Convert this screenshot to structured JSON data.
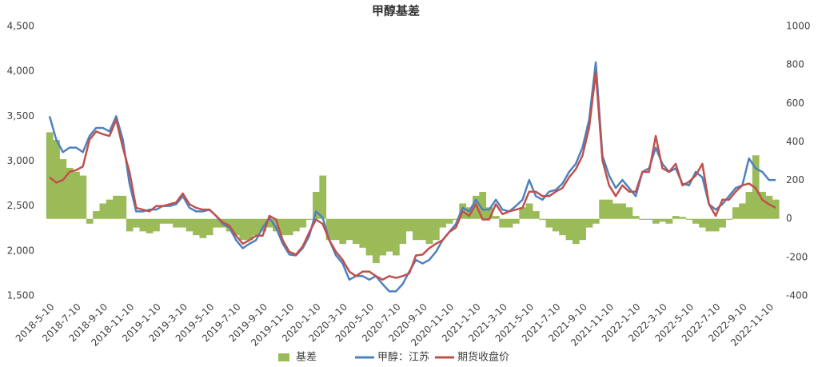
{
  "chart_data": {
    "type": "line",
    "title": "甲醇基差",
    "categories": [
      "2018-5-10",
      null,
      null,
      null,
      "2018-7-10",
      null,
      null,
      null,
      "2018-9-10",
      null,
      null,
      null,
      "2018-11-10",
      null,
      null,
      null,
      "2019-1-10",
      null,
      null,
      null,
      "2019-3-10",
      null,
      null,
      null,
      "2019-5-10",
      null,
      null,
      null,
      "2019-7-10",
      null,
      null,
      null,
      "2019-9-10",
      null,
      null,
      null,
      "2019-11-10",
      null,
      null,
      null,
      "2020-1-10",
      null,
      null,
      null,
      "2020-3-10",
      null,
      null,
      null,
      "2020-5-10",
      null,
      null,
      null,
      "2020-7-10",
      null,
      null,
      null,
      "2020-9-10",
      null,
      null,
      null,
      "2020-11-10",
      null,
      null,
      null,
      "2021-1-10",
      null,
      null,
      null,
      "2021-3-10",
      null,
      null,
      null,
      "2021-5-10",
      null,
      null,
      null,
      "2021-7-10",
      null,
      null,
      null,
      "2021-9-10",
      null,
      null,
      null,
      "2021-11-10",
      null,
      null,
      null,
      "2022-1-10",
      null,
      null,
      null,
      "2022-3-10",
      null,
      null,
      null,
      "2022-5-10",
      null,
      null,
      null,
      "2022-7-10",
      null,
      null,
      null,
      "2022-9-10",
      null,
      null,
      null,
      "2022-11-10",
      null
    ],
    "series": [
      {
        "name": "基差",
        "type": "bar",
        "axis": "y2",
        "color": "#9bbb59",
        "values": [
          450,
          410,
          310,
          265,
          245,
          225,
          -25,
          40,
          80,
          100,
          120,
          120,
          -65,
          -45,
          -65,
          -75,
          -65,
          -25,
          -25,
          -45,
          -45,
          -65,
          -85,
          -100,
          -85,
          -45,
          -45,
          -65,
          -85,
          -110,
          -110,
          -85,
          -65,
          -45,
          -65,
          -85,
          -85,
          -65,
          -45,
          -5,
          140,
          225,
          -110,
          -110,
          -130,
          -110,
          -130,
          -150,
          -190,
          -230,
          -190,
          -170,
          -190,
          -130,
          -65,
          -110,
          -110,
          -130,
          -110,
          -45,
          -25,
          -5,
          80,
          60,
          120,
          140,
          60,
          15,
          -45,
          -45,
          -25,
          60,
          80,
          40,
          -5,
          -45,
          -65,
          -85,
          -110,
          -130,
          -110,
          -45,
          -25,
          100,
          100,
          80,
          80,
          60,
          15,
          -5,
          -5,
          -25,
          -15,
          -25,
          15,
          10,
          -5,
          -25,
          -45,
          -65,
          -65,
          -45,
          -5,
          60,
          80,
          140,
          330,
          140,
          120,
          100
        ]
      },
      {
        "name": "甲醇：江苏",
        "type": "line",
        "color": "#4f81bd",
        "values": [
          3500,
          3240,
          3100,
          3150,
          3150,
          3100,
          3280,
          3370,
          3370,
          3330,
          3500,
          3240,
          2750,
          2440,
          2440,
          2460,
          2460,
          2500,
          2500,
          2520,
          2610,
          2480,
          2440,
          2440,
          2460,
          2390,
          2300,
          2260,
          2120,
          2030,
          2080,
          2120,
          2260,
          2370,
          2260,
          2080,
          1960,
          1950,
          2030,
          2170,
          2440,
          2370,
          2120,
          1950,
          1860,
          1680,
          1720,
          1720,
          1680,
          1720,
          1630,
          1550,
          1550,
          1630,
          1770,
          1900,
          1860,
          1900,
          1990,
          2120,
          2210,
          2300,
          2480,
          2440,
          2570,
          2460,
          2460,
          2570,
          2460,
          2440,
          2500,
          2570,
          2790,
          2610,
          2570,
          2660,
          2680,
          2750,
          2880,
          2970,
          3150,
          3460,
          4100,
          3060,
          2840,
          2700,
          2790,
          2700,
          2610,
          2880,
          2920,
          3150,
          2970,
          2880,
          2920,
          2750,
          2730,
          2880,
          2820,
          2520,
          2460,
          2520,
          2610,
          2700,
          2730,
          3030,
          2920,
          2880,
          2790,
          2790
        ]
      },
      {
        "name": "期货收盘价",
        "type": "line",
        "color": "#c0504d",
        "values": [
          2820,
          2760,
          2790,
          2880,
          2900,
          2940,
          3240,
          3330,
          3300,
          3280,
          3460,
          3150,
          2880,
          2480,
          2460,
          2440,
          2500,
          2500,
          2520,
          2540,
          2640,
          2520,
          2480,
          2460,
          2460,
          2390,
          2320,
          2280,
          2170,
          2080,
          2120,
          2170,
          2170,
          2390,
          2350,
          2120,
          1990,
          1960,
          2050,
          2210,
          2350,
          2300,
          2120,
          1990,
          1900,
          1770,
          1720,
          1770,
          1770,
          1720,
          1680,
          1720,
          1700,
          1720,
          1750,
          1950,
          1960,
          2030,
          2080,
          2120,
          2210,
          2260,
          2440,
          2390,
          2520,
          2350,
          2350,
          2520,
          2410,
          2440,
          2460,
          2480,
          2660,
          2660,
          2610,
          2610,
          2660,
          2700,
          2820,
          2910,
          3060,
          3370,
          3990,
          3010,
          2730,
          2610,
          2730,
          2660,
          2660,
          2880,
          2880,
          3280,
          2920,
          2880,
          2970,
          2730,
          2770,
          2840,
          2970,
          2520,
          2390,
          2570,
          2570,
          2660,
          2730,
          2750,
          2700,
          2570,
          2520,
          2480
        ]
      }
    ],
    "ylim": [
      1500,
      4500
    ],
    "yticks": [
      {
        "value": 1500,
        "label": "1,500"
      },
      {
        "value": 2000,
        "label": "2,000"
      },
      {
        "value": 2500,
        "label": "2,500"
      },
      {
        "value": 3000,
        "label": "3,000"
      },
      {
        "value": 3500,
        "label": "3,500"
      },
      {
        "value": 4000,
        "label": "4,000"
      },
      {
        "value": 4500,
        "label": "4,500"
      }
    ],
    "y2lim": [
      -400,
      1000
    ],
    "y2ticks": [
      -400,
      -200,
      0,
      200,
      400,
      600,
      800,
      1000
    ],
    "grid": false,
    "legend": "bottom"
  }
}
